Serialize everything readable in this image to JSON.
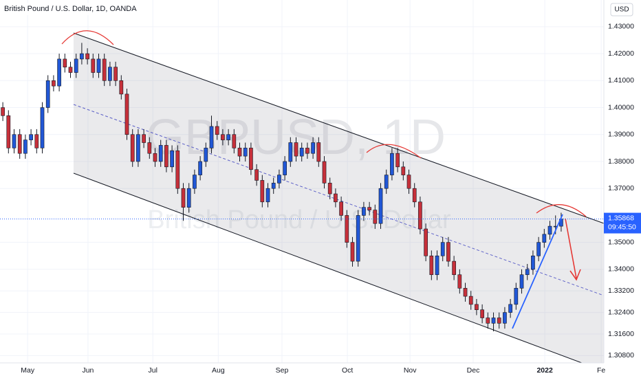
{
  "chart_data": {
    "type": "candlestick",
    "title": "British Pound / U.S. Dollar, 1D, OANDA",
    "watermark": "GBPUSD, 1D",
    "watermark_sub": "British Pound / U.S. Dollar",
    "currency": "USD",
    "countdown": "09:45:50",
    "up_color": "#2157d6",
    "down_color": "#c6303a",
    "price_tag_color": "#2962ff",
    "xlim": [
      -0.5,
      106.57
    ],
    "ylim": [
      1.3053,
      1.4399
    ],
    "grid": true,
    "xticks": [
      {
        "value": 4.4,
        "label": "May"
      },
      {
        "value": 15.1,
        "label": "Jun"
      },
      {
        "value": 26.6,
        "label": "Jul"
      },
      {
        "value": 38.2,
        "label": "Aug"
      },
      {
        "value": 49.5,
        "label": "Sep"
      },
      {
        "value": 61.1,
        "label": "Oct"
      },
      {
        "value": 72.2,
        "label": "Nov"
      },
      {
        "value": 83.4,
        "label": "Dec"
      },
      {
        "value": 96.1,
        "label": "2022"
      },
      {
        "value": 106.1,
        "label": "Fe"
      }
    ],
    "yticks": [
      {
        "value": 1.43,
        "label": "1.43000"
      },
      {
        "value": 1.42,
        "label": "1.42000"
      },
      {
        "value": 1.41,
        "label": "1.41000"
      },
      {
        "value": 1.4,
        "label": "1.40000"
      },
      {
        "value": 1.39,
        "label": "1.39000"
      },
      {
        "value": 1.38,
        "label": "1.38000"
      },
      {
        "value": 1.37,
        "label": "1.37000"
      },
      {
        "value": 1.35,
        "label": "1.35000"
      },
      {
        "value": 1.34,
        "label": "1.34000"
      },
      {
        "value": 1.332,
        "label": "1.33200"
      },
      {
        "value": 1.324,
        "label": "1.32400"
      },
      {
        "value": 1.316,
        "label": "1.31600"
      },
      {
        "value": 1.308,
        "label": "1.30800"
      }
    ],
    "last_price": 1.35868,
    "open": [
      1.4,
      1.397,
      1.385,
      1.39,
      1.383,
      1.388,
      1.39,
      1.385,
      1.4,
      1.41,
      1.408,
      1.418,
      1.415,
      1.413,
      1.418,
      1.42,
      1.418,
      1.413,
      1.418,
      1.41,
      1.415,
      1.41,
      1.405,
      1.39,
      1.38,
      1.39,
      1.387,
      1.383,
      1.38,
      1.386,
      1.378,
      1.384,
      1.37,
      1.363,
      1.37,
      1.375,
      1.38,
      1.385,
      1.393,
      1.39,
      1.388,
      1.39,
      1.385,
      1.382,
      1.385,
      1.377,
      1.373,
      1.365,
      1.37,
      1.372,
      1.375,
      1.38,
      1.387,
      1.382,
      1.385,
      1.383,
      1.387,
      1.38,
      1.372,
      1.368,
      1.365,
      1.36,
      1.35,
      1.343,
      1.36,
      1.363,
      1.362,
      1.357,
      1.37,
      1.375,
      1.383,
      1.378,
      1.375,
      1.37,
      1.365,
      1.355,
      1.345,
      1.338,
      1.345,
      1.35,
      1.343,
      1.338,
      1.333,
      1.33,
      1.327,
      1.325,
      1.322,
      1.32,
      1.322,
      1.32,
      1.324,
      1.327,
      1.333,
      1.338,
      1.34,
      1.345,
      1.35,
      1.353,
      1.356,
      1.356
    ],
    "high": [
      1.402,
      1.399,
      1.392,
      1.392,
      1.39,
      1.392,
      1.392,
      1.402,
      1.412,
      1.412,
      1.42,
      1.42,
      1.417,
      1.42,
      1.424,
      1.422,
      1.42,
      1.42,
      1.42,
      1.417,
      1.417,
      1.412,
      1.407,
      1.392,
      1.392,
      1.392,
      1.389,
      1.385,
      1.388,
      1.388,
      1.386,
      1.386,
      1.372,
      1.372,
      1.377,
      1.382,
      1.387,
      1.397,
      1.395,
      1.392,
      1.392,
      1.392,
      1.387,
      1.387,
      1.387,
      1.379,
      1.375,
      1.372,
      1.374,
      1.377,
      1.382,
      1.389,
      1.389,
      1.387,
      1.387,
      1.389,
      1.389,
      1.382,
      1.374,
      1.37,
      1.367,
      1.362,
      1.352,
      1.362,
      1.365,
      1.365,
      1.364,
      1.372,
      1.377,
      1.385,
      1.385,
      1.38,
      1.377,
      1.372,
      1.367,
      1.357,
      1.347,
      1.347,
      1.352,
      1.352,
      1.345,
      1.34,
      1.335,
      1.332,
      1.329,
      1.327,
      1.324,
      1.324,
      1.324,
      1.326,
      1.329,
      1.335,
      1.34,
      1.342,
      1.347,
      1.352,
      1.355,
      1.358,
      1.36,
      1.361
    ],
    "low": [
      1.395,
      1.383,
      1.383,
      1.381,
      1.381,
      1.386,
      1.383,
      1.383,
      1.398,
      1.406,
      1.406,
      1.413,
      1.411,
      1.411,
      1.416,
      1.416,
      1.411,
      1.411,
      1.408,
      1.408,
      1.408,
      1.403,
      1.388,
      1.378,
      1.378,
      1.385,
      1.381,
      1.378,
      1.378,
      1.376,
      1.376,
      1.368,
      1.358,
      1.361,
      1.368,
      1.373,
      1.378,
      1.383,
      1.388,
      1.386,
      1.386,
      1.383,
      1.38,
      1.38,
      1.375,
      1.371,
      1.363,
      1.363,
      1.368,
      1.37,
      1.373,
      1.378,
      1.38,
      1.38,
      1.381,
      1.381,
      1.378,
      1.37,
      1.366,
      1.363,
      1.358,
      1.348,
      1.341,
      1.341,
      1.358,
      1.36,
      1.355,
      1.355,
      1.368,
      1.373,
      1.376,
      1.373,
      1.368,
      1.363,
      1.353,
      1.343,
      1.336,
      1.336,
      1.343,
      1.341,
      1.336,
      1.331,
      1.328,
      1.325,
      1.323,
      1.32,
      1.318,
      1.317,
      1.318,
      1.318,
      1.322,
      1.325,
      1.331,
      1.336,
      1.338,
      1.343,
      1.348,
      1.351,
      1.353,
      1.354
    ],
    "close": [
      1.397,
      1.385,
      1.39,
      1.383,
      1.388,
      1.39,
      1.385,
      1.4,
      1.41,
      1.408,
      1.418,
      1.415,
      1.413,
      1.418,
      1.42,
      1.418,
      1.413,
      1.418,
      1.41,
      1.415,
      1.41,
      1.405,
      1.39,
      1.38,
      1.39,
      1.387,
      1.383,
      1.38,
      1.386,
      1.378,
      1.384,
      1.37,
      1.363,
      1.37,
      1.375,
      1.38,
      1.385,
      1.393,
      1.39,
      1.388,
      1.39,
      1.385,
      1.382,
      1.385,
      1.377,
      1.373,
      1.365,
      1.37,
      1.372,
      1.375,
      1.38,
      1.387,
      1.382,
      1.385,
      1.383,
      1.387,
      1.38,
      1.372,
      1.368,
      1.365,
      1.36,
      1.35,
      1.343,
      1.36,
      1.363,
      1.362,
      1.357,
      1.37,
      1.375,
      1.383,
      1.378,
      1.375,
      1.37,
      1.365,
      1.355,
      1.345,
      1.338,
      1.345,
      1.35,
      1.343,
      1.338,
      1.333,
      1.33,
      1.327,
      1.325,
      1.322,
      1.32,
      1.322,
      1.32,
      1.324,
      1.327,
      1.333,
      1.338,
      1.34,
      1.345,
      1.35,
      1.353,
      1.356,
      1.356,
      1.35868
    ]
  }
}
